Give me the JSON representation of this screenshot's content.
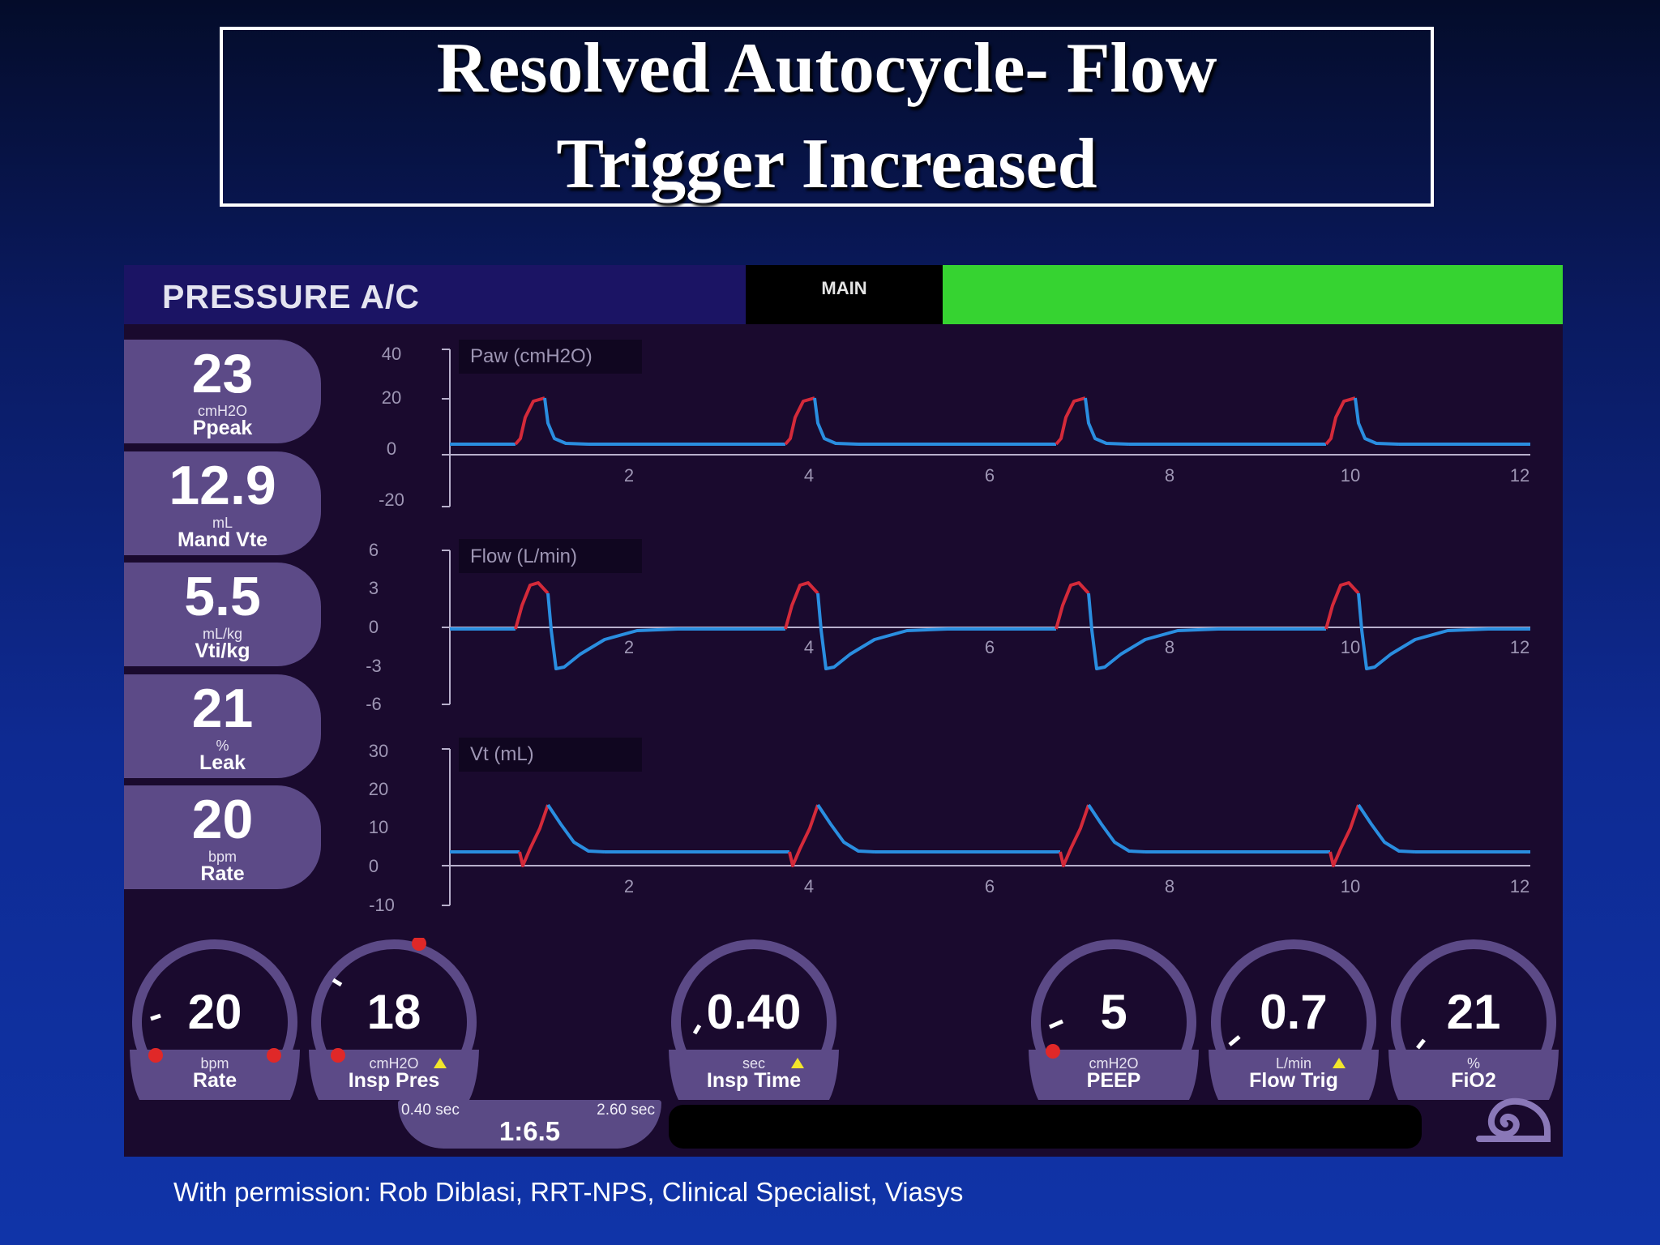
{
  "slide": {
    "title_line1": "Resolved Autocycle- Flow",
    "title_line2": "Trigger Increased",
    "credit": "With permission: Rob Diblasi, RRT-NPS, Clinical Specialist, Viasys"
  },
  "ventilator": {
    "mode": "PRESSURE A/C",
    "screen_tab": "MAIN",
    "status_color": "#36d331",
    "monitors": [
      {
        "value": "23",
        "unit": "cmH2O",
        "label": "Ppeak"
      },
      {
        "value": "12.9",
        "unit": "mL",
        "label": "Mand Vte"
      },
      {
        "value": "5.5",
        "unit": "mL/kg",
        "label": "Vti/kg"
      },
      {
        "value": "21",
        "unit": "%",
        "label": "Leak"
      },
      {
        "value": "20",
        "unit": "bpm",
        "label": "Rate"
      }
    ],
    "waveforms": [
      {
        "label": "Paw (cmH2O)",
        "y_ticks": [
          "40",
          "20",
          "0",
          "-20"
        ]
      },
      {
        "label": "Flow (L/min)",
        "y_ticks": [
          "6",
          "3",
          "0",
          "-3",
          "-6"
        ]
      },
      {
        "label": "Vt (mL)",
        "y_ticks": [
          "30",
          "20",
          "10",
          "0",
          "-10"
        ]
      }
    ],
    "x_ticks": [
      "2",
      "4",
      "6",
      "8",
      "10",
      "12"
    ],
    "controls": [
      {
        "value": "20",
        "unit": "bpm",
        "label": "Rate",
        "warning": false
      },
      {
        "value": "18",
        "unit": "cmH2O",
        "label": "Insp Pres",
        "warning": true
      },
      {
        "value": "0.40",
        "unit": "sec",
        "label": "Insp Time",
        "warning": true
      },
      {
        "value": "5",
        "unit": "cmH2O",
        "label": "PEEP",
        "warning": false
      },
      {
        "value": "0.7",
        "unit": "L/min",
        "label": "Flow Trig",
        "warning": true
      },
      {
        "value": "21",
        "unit": "%",
        "label": "FiO2",
        "warning": false
      }
    ],
    "ie_ratio": {
      "insp_time": "0.40 sec",
      "exp_time": "2.60 sec",
      "ratio": "1:6.5"
    },
    "colors": {
      "insp_trace": "#d42a3a",
      "exp_trace": "#2a8ee0",
      "panel": "#5c4a87"
    }
  }
}
